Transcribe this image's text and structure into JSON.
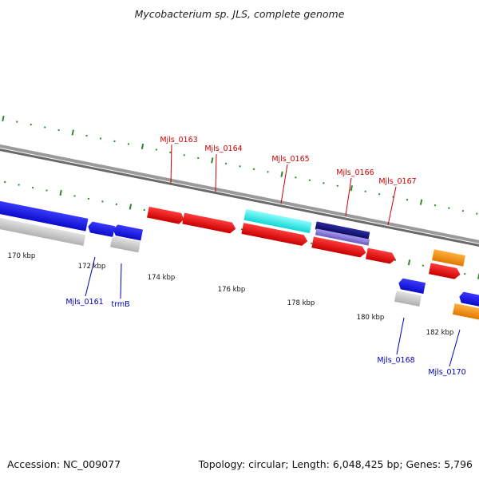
{
  "title": "Mycobacterium sp. JLS, complete genome",
  "footer": {
    "accession": "Accession: NC_009077",
    "summary": "Topology: circular; Length: 6,048,425 bp; Genes: 5,796"
  },
  "tick_labels": [
    "170 kbp",
    "172 kbp",
    "174 kbp",
    "176 kbp",
    "178 kbp",
    "180 kbp",
    "182 kbp"
  ],
  "gene_labels_top": [
    "Mjls_0163",
    "Mjls_0164",
    "Mjls_0165",
    "Mjls_0166",
    "Mjls_0167"
  ],
  "gene_labels_bottom": [
    "Mjls_0161",
    "trmB",
    "Mjls_0168",
    "Mjls_0170"
  ],
  "colors": {
    "red": "#ee0000",
    "blue": "#1515ee",
    "gray": "#c8c8c8",
    "cyan": "#22f0f0",
    "navy": "#12127a",
    "lavender": "#8a7ad6",
    "orange": "#ff8c00",
    "backbone": "#7f7f7f",
    "tick": "#2e8b2e",
    "label_top": "#cc0000",
    "label_bottom": "#0000bb"
  }
}
